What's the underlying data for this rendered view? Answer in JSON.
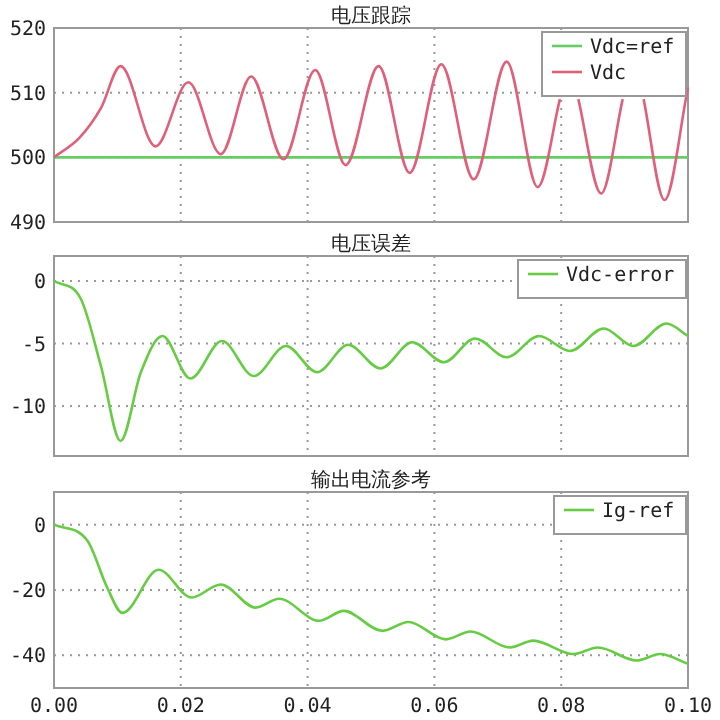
{
  "chart_data": [
    {
      "type": "line",
      "title": "电压跟踪",
      "xlim": [
        0,
        0.1
      ],
      "ylim": [
        490,
        520
      ],
      "yticks": [
        490,
        500,
        510,
        520
      ],
      "xticks": [
        {
          "value": 0,
          "label": null
        },
        {
          "value": 0.02,
          "label": null
        },
        {
          "value": 0.04,
          "label": null
        },
        {
          "value": 0.06,
          "label": null
        },
        {
          "value": 0.08,
          "label": null
        },
        {
          "value": 0.1,
          "label": null
        }
      ],
      "tick_labels": "y",
      "grid": true,
      "legend": "top right",
      "series": [
        {
          "name": "Vdc=ref",
          "color": "#66cc66",
          "x": [
            0,
            0.1
          ],
          "values": [
            500,
            500
          ]
        },
        {
          "name": "Vdc",
          "color": "#e0607a",
          "x": [
            0,
            0.004,
            0.0074,
            0.0105,
            0.016,
            0.0212,
            0.0263,
            0.0311,
            0.0362,
            0.0412,
            0.046,
            0.0512,
            0.0561,
            0.0611,
            0.0662,
            0.0714,
            0.0763,
            0.0798,
            0.0812,
            0.0827,
            0.0863,
            0.0897,
            0.0914,
            0.093,
            0.0963,
            0.1
          ],
          "values": [
            500,
            503,
            507.6,
            514.1,
            501.7,
            511.6,
            500.5,
            512.5,
            499.7,
            513.5,
            498.8,
            514.1,
            497.6,
            514.4,
            496.6,
            514.8,
            495.4,
            509,
            null,
            509,
            494.4,
            509,
            null,
            509,
            493.4,
            510.8
          ]
        }
      ]
    },
    {
      "type": "line",
      "title": "电压误差",
      "xlim": [
        0,
        0.1
      ],
      "ylim": [
        -14,
        2
      ],
      "yticks": [
        -10,
        -5,
        0
      ],
      "xticks": [
        {
          "value": 0,
          "label": null
        },
        {
          "value": 0.02,
          "label": null
        },
        {
          "value": 0.04,
          "label": null
        },
        {
          "value": 0.06,
          "label": null
        },
        {
          "value": 0.08,
          "label": null
        },
        {
          "value": 0.1,
          "label": null
        }
      ],
      "tick_labels": "y",
      "grid": true,
      "legend": "top right",
      "series": [
        {
          "name": "Vdc-error",
          "color": "#66cc44",
          "x": [
            0,
            0.0042,
            0.0074,
            0.0105,
            0.0137,
            0.0171,
            0.0215,
            0.0265,
            0.0315,
            0.0366,
            0.0415,
            0.0464,
            0.0515,
            0.0565,
            0.0615,
            0.0664,
            0.0714,
            0.0765,
            0.0814,
            0.0867,
            0.0914,
            0.0966,
            0.1
          ],
          "values": [
            0,
            -1.4,
            -6.8,
            -12.8,
            -7.3,
            -4.4,
            -7.8,
            -4.8,
            -7.6,
            -5.2,
            -7.3,
            -5.1,
            -7.0,
            -4.9,
            -6.5,
            -4.6,
            -6.1,
            -4.4,
            -5.6,
            -3.8,
            -5.2,
            -3.4,
            -4.4
          ]
        }
      ]
    },
    {
      "type": "line",
      "title": "输出电流参考",
      "xlim": [
        0,
        0.1
      ],
      "ylim": [
        -50,
        10
      ],
      "yticks": [
        -40,
        -20,
        0
      ],
      "xticks": [
        {
          "value": 0,
          "label": "0.00"
        },
        {
          "value": 0.02,
          "label": "0.02"
        },
        {
          "value": 0.04,
          "label": "0.04"
        },
        {
          "value": 0.06,
          "label": "0.06"
        },
        {
          "value": 0.08,
          "label": "0.08"
        },
        {
          "value": 0.1,
          "label": "0.10"
        }
      ],
      "grid": true,
      "legend": "top right",
      "series": [
        {
          "name": "Ig-ref",
          "color": "#66cc44",
          "x": [
            0,
            0.0053,
            0.0084,
            0.0108,
            0.0165,
            0.0217,
            0.0263,
            0.0318,
            0.0355,
            0.0418,
            0.0457,
            0.0518,
            0.0559,
            0.0618,
            0.0657,
            0.0719,
            0.0756,
            0.0819,
            0.0858,
            0.0919,
            0.0956,
            0.1
          ],
          "values": [
            0,
            -5,
            -19.3,
            -27,
            -13.8,
            -22.3,
            -18.3,
            -25.4,
            -22.7,
            -29.4,
            -26.4,
            -32.5,
            -29.8,
            -35.1,
            -32.7,
            -37.6,
            -35.5,
            -39.6,
            -37.6,
            -41.6,
            -39.6,
            -42.6
          ]
        }
      ]
    }
  ]
}
